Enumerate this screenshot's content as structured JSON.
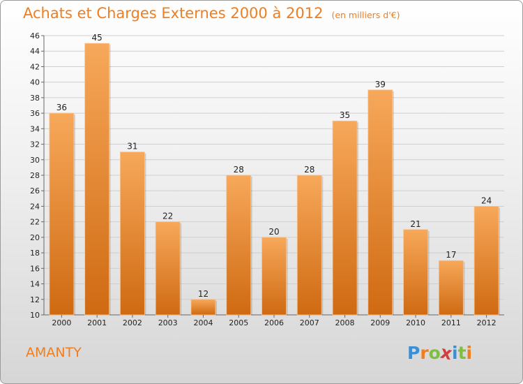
{
  "header": {
    "title": "Achats et Charges Externes 2000 à 2012",
    "subtitle": "(en milliers d'€)"
  },
  "footer": {
    "place": "AMANTY",
    "logo": [
      "P",
      "r",
      "o",
      "x",
      "i",
      "t",
      "i"
    ]
  },
  "colors": {
    "accent": "#f07d1e",
    "bar_light": "#f7a85a",
    "bar_dark": "#cf6a12",
    "logo": [
      "#3d8fd4",
      "#f07d1e",
      "#7fbf3f",
      "#d23f3f",
      "#3d8fd4",
      "#7fbf3f",
      "#f07d1e"
    ]
  },
  "chart_data": {
    "type": "bar",
    "title": "Achats et Charges Externes 2000 à 2012",
    "subtitle": "(en milliers d'€)",
    "categories": [
      "2000",
      "2001",
      "2002",
      "2003",
      "2004",
      "2005",
      "2006",
      "2007",
      "2008",
      "2009",
      "2010",
      "2011",
      "2012"
    ],
    "values": [
      36,
      45,
      31,
      22,
      12,
      28,
      20,
      28,
      35,
      39,
      21,
      17,
      24
    ],
    "ylim": [
      10,
      46
    ],
    "yticks": [
      10,
      12,
      14,
      16,
      18,
      20,
      22,
      24,
      26,
      28,
      30,
      32,
      34,
      36,
      38,
      40,
      42,
      44,
      46
    ],
    "grid": true,
    "legend": "none"
  }
}
